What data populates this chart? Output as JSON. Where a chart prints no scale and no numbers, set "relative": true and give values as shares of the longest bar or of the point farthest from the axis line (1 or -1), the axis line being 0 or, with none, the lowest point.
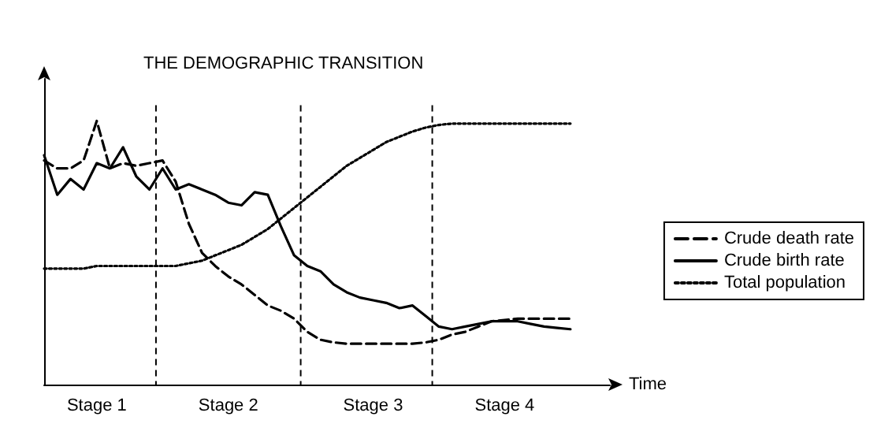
{
  "chart_data": {
    "type": "line",
    "title": "THE DEMOGRAPHIC TRANSITION",
    "xlabel": "Time",
    "relative": true,
    "marker": "none",
    "grid": false,
    "legend": "right",
    "categories": [
      null,
      null,
      null,
      null,
      "Stage 1",
      null,
      null,
      null,
      null,
      null,
      null,
      null,
      null,
      null,
      "Stage 2",
      null,
      null,
      null,
      null,
      null,
      null,
      null,
      null,
      null,
      null,
      "Stage 3",
      null,
      null,
      null,
      null,
      null,
      null,
      null,
      null,
      null,
      "Stage 4",
      null,
      null,
      null,
      null,
      null,
      null,
      null,
      null
    ],
    "series": [
      {
        "name": "Crude death rate",
        "color": "#000000",
        "line_style": "dashed",
        "values": [
          0.85,
          0.82,
          0.82,
          0.85,
          1.0,
          0.82,
          0.84,
          0.83,
          0.84,
          0.85,
          0.77,
          0.61,
          0.5,
          0.45,
          0.41,
          0.38,
          0.34,
          0.3,
          0.28,
          0.25,
          0.2,
          0.17,
          0.16,
          0.155,
          0.155,
          0.155,
          0.155,
          0.155,
          0.155,
          0.16,
          0.17,
          0.19,
          0.2,
          0.22,
          0.24,
          0.245,
          0.25,
          0.25,
          0.25,
          0.25,
          0.25,
          null,
          null,
          null
        ]
      },
      {
        "name": "Crude birth rate",
        "color": "#000000",
        "line_style": "solid",
        "values": [
          0.87,
          0.72,
          0.78,
          0.74,
          0.84,
          0.82,
          0.9,
          0.79,
          0.74,
          0.82,
          0.74,
          0.76,
          0.74,
          0.72,
          0.69,
          0.68,
          0.73,
          0.72,
          0.6,
          0.49,
          0.45,
          0.43,
          0.38,
          0.35,
          0.33,
          0.32,
          0.31,
          0.29,
          0.3,
          0.26,
          0.22,
          0.21,
          0.22,
          0.23,
          0.24,
          0.24,
          0.24,
          0.23,
          0.22,
          0.215,
          0.21,
          null,
          null,
          null
        ]
      },
      {
        "name": "Total population",
        "color": "#000000",
        "line_style": "dotted",
        "values": [
          0.44,
          0.44,
          0.44,
          0.44,
          0.45,
          0.45,
          0.45,
          0.45,
          0.45,
          0.45,
          0.45,
          0.46,
          0.47,
          0.49,
          0.51,
          0.53,
          0.56,
          0.59,
          0.63,
          0.67,
          0.71,
          0.75,
          0.79,
          0.83,
          0.86,
          0.89,
          0.92,
          0.94,
          0.96,
          0.975,
          0.985,
          0.99,
          0.99,
          0.99,
          0.99,
          0.99,
          0.99,
          0.99,
          0.99,
          0.99,
          0.99,
          null,
          null,
          null
        ]
      }
    ]
  }
}
